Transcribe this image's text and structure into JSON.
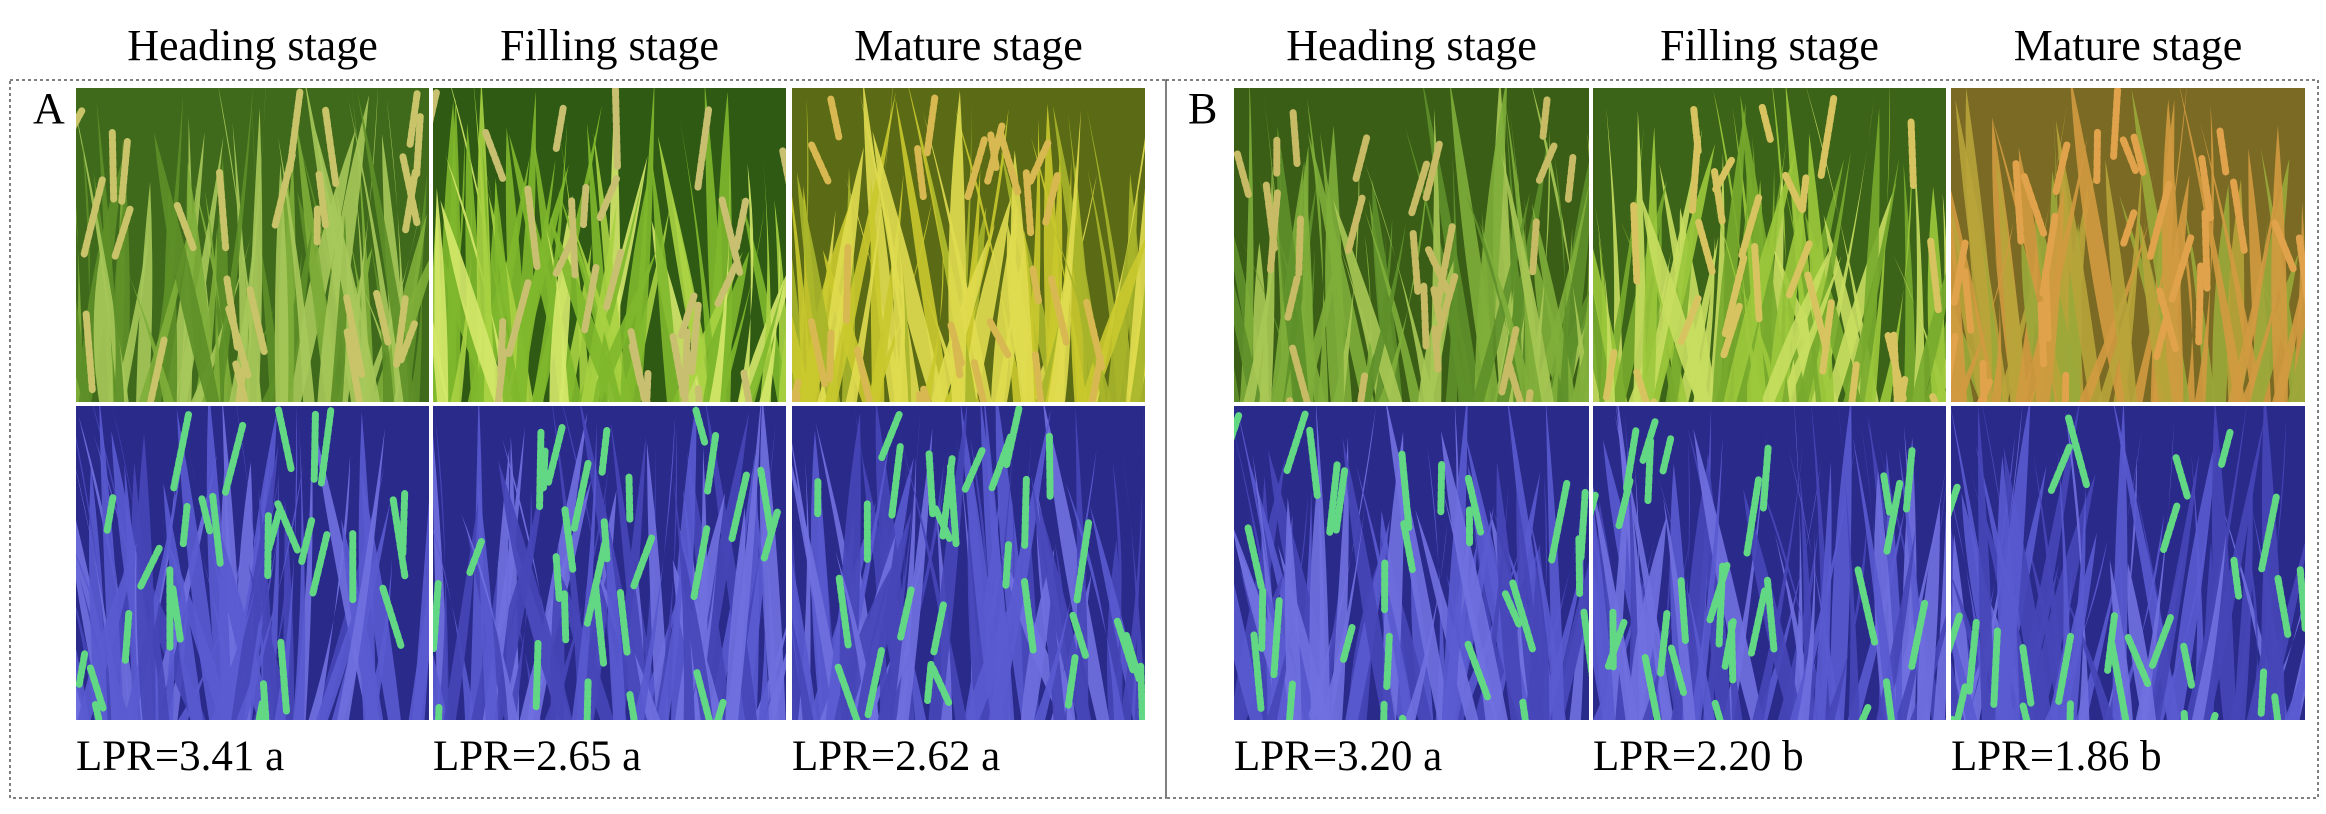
{
  "panels": [
    {
      "label": "A",
      "columns": [
        {
          "heading": "Heading stage",
          "lpr": "LPR=3.41 a"
        },
        {
          "heading": "Filling stage",
          "lpr": "LPR=2.65 a"
        },
        {
          "heading": "Mature stage",
          "lpr": "LPR=2.62 a"
        }
      ]
    },
    {
      "label": "B",
      "columns": [
        {
          "heading": "Heading stage",
          "lpr": "LPR=3.20 a"
        },
        {
          "heading": "Filling stage",
          "lpr": "LPR=2.20 b"
        },
        {
          "heading": "Mature stage",
          "lpr": "LPR=1.86 b"
        }
      ]
    }
  ]
}
